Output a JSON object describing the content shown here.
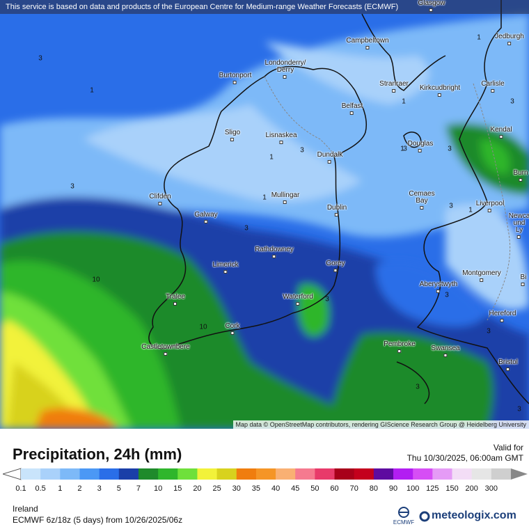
{
  "notice": "This service is based on data and products of the European Centre for Medium-range Weather Forecasts (ECMWF)",
  "attribution": "Map data © OpenStreetMap contributors, rendering GIScience Research Group @ Heidelberg University",
  "title": "Precipitation, 24h (mm)",
  "valid_label": "Valid for",
  "valid_time": "Thu 10/30/2025, 06:00am GMT",
  "region": "Ireland",
  "model_run": "ECMWF 6z/18z (5 days)  from  10/26/2025/06z",
  "brand": "meteologix.com",
  "ecmwf_label": "ECMWF",
  "legend": {
    "ticks": [
      "0.1",
      "0.5",
      "1",
      "2",
      "3",
      "5",
      "7",
      "10",
      "15",
      "20",
      "25",
      "30",
      "35",
      "40",
      "45",
      "50",
      "60",
      "70",
      "80",
      "90",
      "100",
      "125",
      "150",
      "200",
      "300"
    ],
    "colors": [
      "#c9e4fb",
      "#a9d1fa",
      "#7db9f8",
      "#4b98f5",
      "#2a6ee8",
      "#1a3fa8",
      "#1f8a2b",
      "#2fb62c",
      "#6fe03b",
      "#f2f23a",
      "#d8d21e",
      "#f07d0e",
      "#f59526",
      "#f9b073",
      "#f57a8f",
      "#e83a6a",
      "#a8001a",
      "#c4001d",
      "#5e0ba0",
      "#b21ef2",
      "#d64ef5",
      "#e59bf6",
      "#f3ddf6",
      "#e6e6e6",
      "#cfcfcf"
    ]
  },
  "cities": [
    {
      "name": "Glasgow"
    },
    {
      "name": "Jedburgh"
    },
    {
      "name": "Campbeltown"
    },
    {
      "name": "Londonderry/\nDerry"
    },
    {
      "name": "Burtonport"
    },
    {
      "name": "Stranraer"
    },
    {
      "name": "Kirkcudbright"
    },
    {
      "name": "Carlisle"
    },
    {
      "name": "Belfast"
    },
    {
      "name": "Kendal"
    },
    {
      "name": "Sligo"
    },
    {
      "name": "Lisnaskea"
    },
    {
      "name": "Douglas"
    },
    {
      "name": "Dundalk"
    },
    {
      "name": "Burn"
    },
    {
      "name": "Clifden"
    },
    {
      "name": "Mullingar"
    },
    {
      "name": "Cemaes\nBay"
    },
    {
      "name": "Liverpool"
    },
    {
      "name": "Dublin"
    },
    {
      "name": "Galway"
    },
    {
      "name": "Newca\nund\nLy"
    },
    {
      "name": "Rathdowney"
    },
    {
      "name": "Limerick"
    },
    {
      "name": "Gorey"
    },
    {
      "name": "Montgomery"
    },
    {
      "name": "Bi"
    },
    {
      "name": "Aberystwyth"
    },
    {
      "name": "Tralee"
    },
    {
      "name": "Waterford"
    },
    {
      "name": "Hereford"
    },
    {
      "name": "Cork"
    },
    {
      "name": "Pembroke"
    },
    {
      "name": "Castletownbere"
    },
    {
      "name": "Swansea"
    },
    {
      "name": "Bristol"
    }
  ],
  "contour_labels": [
    "3",
    "1",
    "1",
    "3",
    "1",
    "3",
    "1",
    "1",
    "3",
    "3",
    "1",
    "1",
    "3",
    "3",
    "10",
    "3",
    "3",
    "10",
    "3",
    "3",
    "3",
    "3"
  ]
}
